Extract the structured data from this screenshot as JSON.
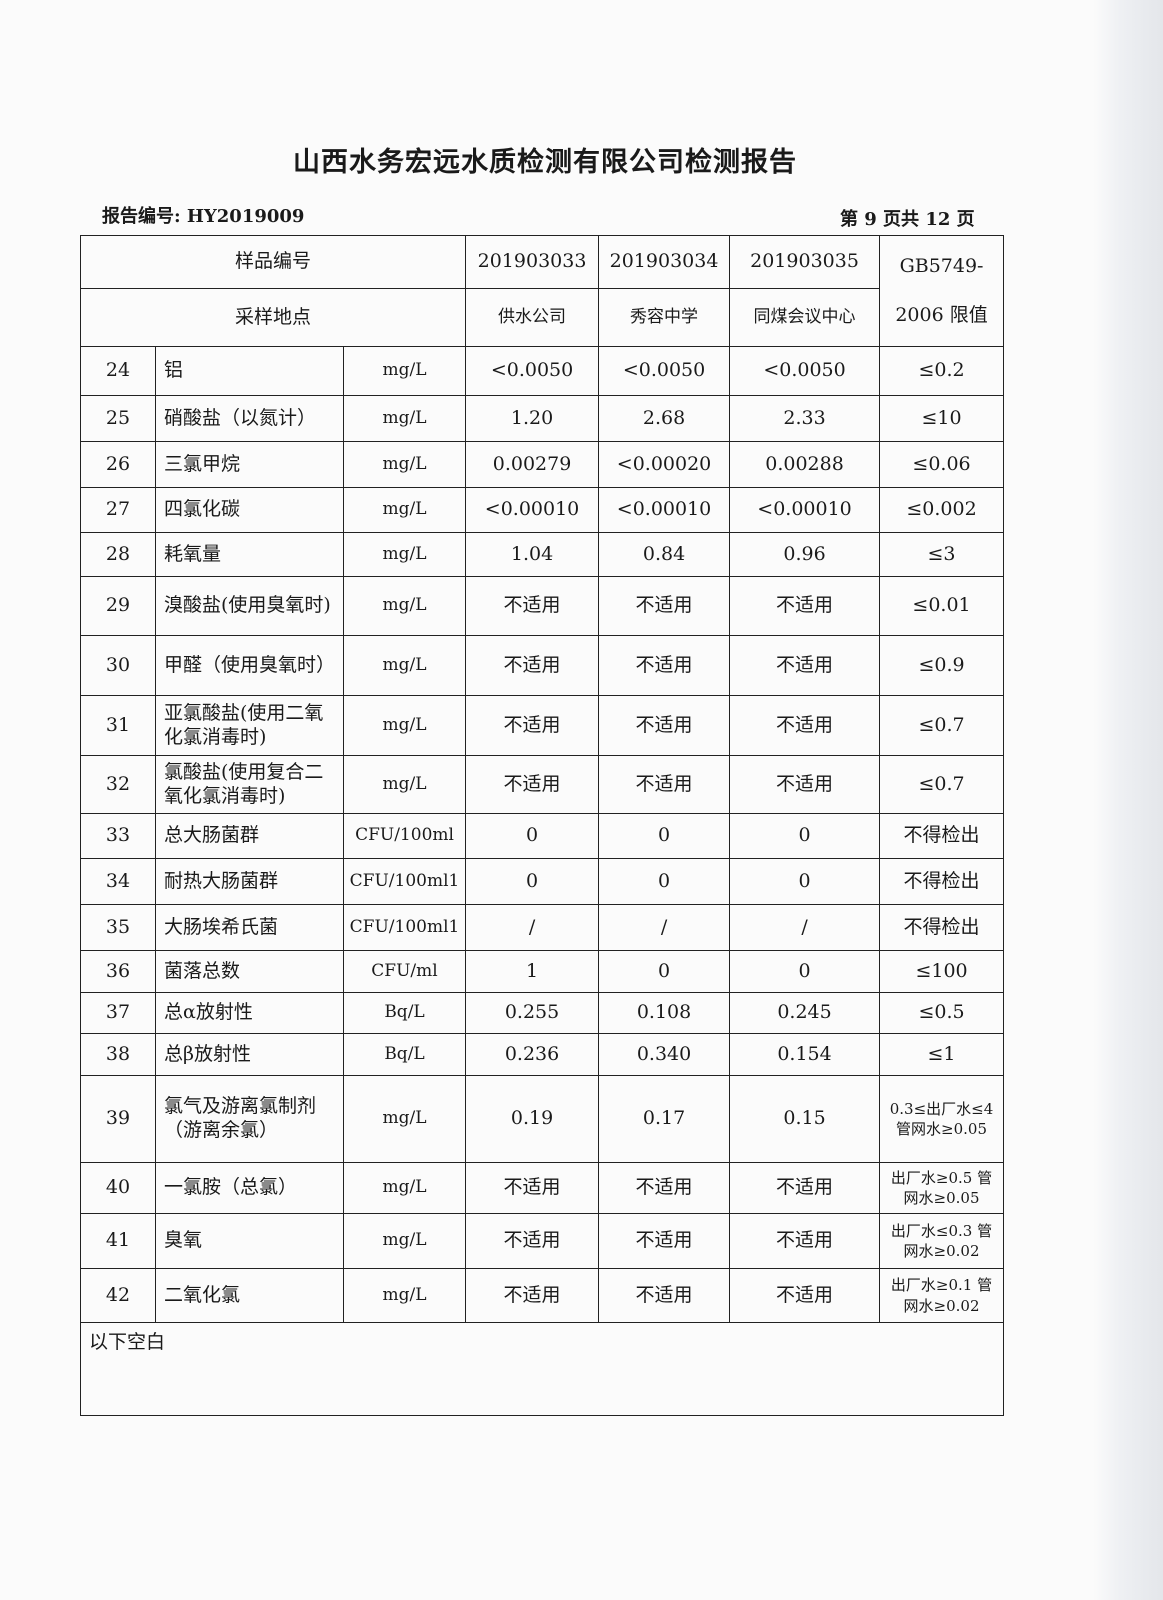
{
  "title": "山西水务宏远水质检测有限公司检测报告",
  "report_no": "报告编号: HY2019009",
  "page_info": "第 9 页共 12 页",
  "header": {
    "sample_no_label": "样品编号",
    "location_label": "采样地点",
    "limit_label": "GB5749-2006 限值",
    "samples": [
      {
        "no": "201903033",
        "loc": "供水公司"
      },
      {
        "no": "201903034",
        "loc": "秀容中学"
      },
      {
        "no": "201903035",
        "loc": "同煤会议中心"
      }
    ]
  },
  "rows": [
    {
      "n": "24",
      "item": "铝",
      "unit": "mg/L",
      "v": [
        "<0.0050",
        "<0.0050",
        "<0.0050"
      ],
      "lim": "≤0.2"
    },
    {
      "n": "25",
      "item": "硝酸盐（以氮计）",
      "unit": "mg/L",
      "v": [
        "1.20",
        "2.68",
        "2.33"
      ],
      "lim": "≤10"
    },
    {
      "n": "26",
      "item": "三氯甲烷",
      "unit": "mg/L",
      "v": [
        "0.00279",
        "<0.00020",
        "0.00288"
      ],
      "lim": "≤0.06"
    },
    {
      "n": "27",
      "item": "四氯化碳",
      "unit": "mg/L",
      "v": [
        "<0.00010",
        "<0.00010",
        "<0.00010"
      ],
      "lim": "≤0.002"
    },
    {
      "n": "28",
      "item": "耗氧量",
      "unit": "mg/L",
      "v": [
        "1.04",
        "0.84",
        "0.96"
      ],
      "lim": "≤3"
    },
    {
      "n": "29",
      "item": "溴酸盐(使用臭氧时)",
      "unit": "mg/L",
      "v": [
        "不适用",
        "不适用",
        "不适用"
      ],
      "lim": "≤0.01"
    },
    {
      "n": "30",
      "item": "甲醛（使用臭氧时）",
      "unit": "mg/L",
      "v": [
        "不适用",
        "不适用",
        "不适用"
      ],
      "lim": "≤0.9"
    },
    {
      "n": "31",
      "item": "亚氯酸盐(使用二氧化氯消毒时)",
      "unit": "mg/L",
      "v": [
        "不适用",
        "不适用",
        "不适用"
      ],
      "lim": "≤0.7"
    },
    {
      "n": "32",
      "item": "氯酸盐(使用复合二氧化氯消毒时)",
      "unit": "mg/L",
      "v": [
        "不适用",
        "不适用",
        "不适用"
      ],
      "lim": "≤0.7"
    },
    {
      "n": "33",
      "item": "总大肠菌群",
      "unit": "CFU/100ml",
      "v": [
        "0",
        "0",
        "0"
      ],
      "lim": "不得检出"
    },
    {
      "n": "34",
      "item": "耐热大肠菌群",
      "unit": "CFU/100ml1",
      "v": [
        "0",
        "0",
        "0"
      ],
      "lim": "不得检出"
    },
    {
      "n": "35",
      "item": "大肠埃希氏菌",
      "unit": "CFU/100ml1",
      "v": [
        "/",
        "/",
        "/"
      ],
      "lim": "不得检出"
    },
    {
      "n": "36",
      "item": "菌落总数",
      "unit": "CFU/ml",
      "v": [
        "1",
        "0",
        "0"
      ],
      "lim": "≤100"
    },
    {
      "n": "37",
      "item": "总α放射性",
      "unit": "Bq/L",
      "v": [
        "0.255",
        "0.108",
        "0.245"
      ],
      "lim": "≤0.5"
    },
    {
      "n": "38",
      "item": "总β放射性",
      "unit": "Bq/L",
      "v": [
        "0.236",
        "0.340",
        "0.154"
      ],
      "lim": "≤1"
    },
    {
      "n": "39",
      "item": "氯气及游离氯制剂（游离余氯）",
      "unit": "mg/L",
      "v": [
        "0.19",
        "0.17",
        "0.15"
      ],
      "lim": "0.3≤出厂水≤4 管网水≥0.05"
    },
    {
      "n": "40",
      "item": "一氯胺（总氯）",
      "unit": "mg/L",
      "v": [
        "不适用",
        "不适用",
        "不适用"
      ],
      "lim": "出厂水≥0.5 管网水≥0.05"
    },
    {
      "n": "41",
      "item": "臭氧",
      "unit": "mg/L",
      "v": [
        "不适用",
        "不适用",
        "不适用"
      ],
      "lim": "出厂水≤0.3 管网水≥0.02"
    },
    {
      "n": "42",
      "item": "二氧化氯",
      "unit": "mg/L",
      "v": [
        "不适用",
        "不适用",
        "不适用"
      ],
      "lim": "出厂水≥0.1 管网水≥0.02"
    }
  ],
  "note": "以下空白"
}
